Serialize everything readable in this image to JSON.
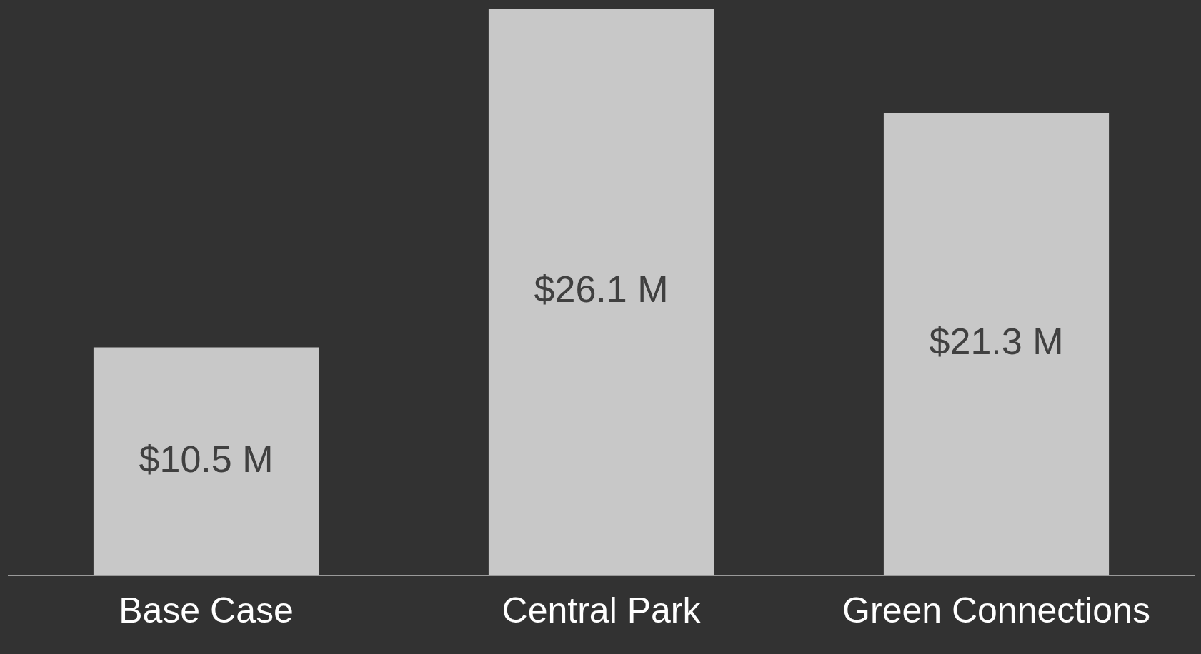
{
  "chart_data": {
    "type": "bar",
    "categories": [
      "Base Case",
      "Central Park",
      "Green Connections"
    ],
    "values": [
      10.5,
      26.1,
      21.3
    ],
    "value_labels": [
      "$10.5 M",
      "$26.1 M",
      "$21.3 M"
    ],
    "color": "#c8c8c8",
    "grid": false,
    "legend": false
  }
}
